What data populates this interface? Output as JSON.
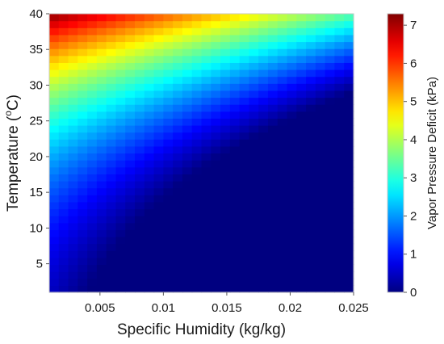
{
  "chart_data": {
    "type": "heatmap",
    "title": "",
    "xlabel": "Specific Humidity (kg/kg)",
    "ylabel_main": "Temperature (",
    "ylabel_sup": "o",
    "ylabel_tail": "C)",
    "xlim": [
      0.001,
      0.025
    ],
    "ylim": [
      1,
      40
    ],
    "x_ticks": [
      0.005,
      0.01,
      0.015,
      0.02,
      0.025
    ],
    "x_tick_labels": [
      "0.005",
      "0.01",
      "0.015",
      "0.02",
      "0.025"
    ],
    "y_ticks": [
      5,
      10,
      15,
      20,
      25,
      30,
      35,
      40
    ],
    "y_tick_labels": [
      "5",
      "10",
      "15",
      "20",
      "25",
      "30",
      "35",
      "40"
    ],
    "grid": false,
    "colormap": "jet",
    "value_formula": "VPD = max(0, 0.6108*exp(17.27*T/(T+237.3)) - q*101.325/(0.622+0.378*q))",
    "x_cells": 32,
    "y_cells": 40,
    "colorbar": {
      "label": "Vapor Pressure Deficit (kPa)",
      "range": [
        0,
        7.3
      ],
      "ticks": [
        0,
        1,
        2,
        3,
        4,
        5,
        6,
        7
      ],
      "tick_labels": [
        "0",
        "1",
        "2",
        "3",
        "4",
        "5",
        "6",
        "7"
      ],
      "position": "right"
    }
  }
}
